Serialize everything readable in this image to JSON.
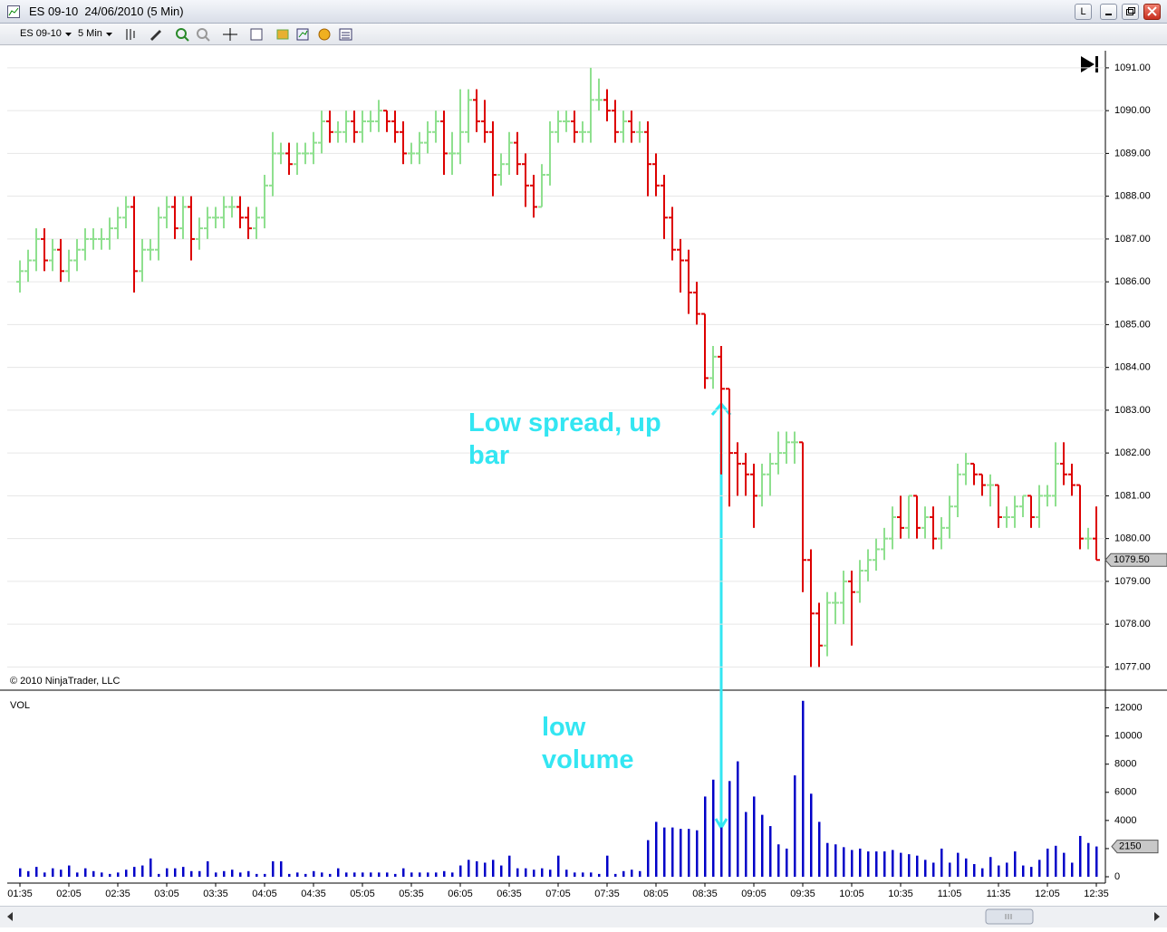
{
  "window": {
    "title": "ES 09-10  24/06/2010 (5 Min)",
    "layout_button": "L"
  },
  "toolbar": {
    "instrument": "ES 09-10",
    "interval": "5 Min"
  },
  "chart_data": [
    {
      "type": "ohlc",
      "open": [
        1086.0,
        1086.25,
        1086.5,
        1087.0,
        1086.5,
        1086.75,
        1086.25,
        1086.5,
        1086.75,
        1087.0,
        1087.0,
        1087.0,
        1087.25,
        1087.5,
        1087.75,
        1086.25,
        1086.75,
        1086.75,
        1087.5,
        1087.75,
        1087.25,
        1087.75,
        1087.0,
        1087.25,
        1087.5,
        1087.5,
        1087.75,
        1087.75,
        1087.5,
        1087.25,
        1087.5,
        1088.25,
        1089.0,
        1089.0,
        1088.75,
        1089.0,
        1089.0,
        1089.25,
        1089.75,
        1089.5,
        1089.5,
        1089.75,
        1089.5,
        1089.75,
        1089.75,
        1090.0,
        1089.75,
        1089.5,
        1089.0,
        1089.0,
        1089.25,
        1089.5,
        1089.75,
        1089.0,
        1089.0,
        1089.5,
        1090.25,
        1089.75,
        1089.5,
        1088.5,
        1088.75,
        1089.25,
        1088.75,
        1088.25,
        1087.75,
        1088.5,
        1089.5,
        1089.75,
        1089.75,
        1089.5,
        1089.5,
        1090.25,
        1090.25,
        1090.0,
        1089.5,
        1089.75,
        1089.5,
        1089.5,
        1088.75,
        1088.25,
        1087.5,
        1086.75,
        1086.5,
        1085.75,
        1085.25,
        1083.75,
        1084.25,
        1083.5,
        1082.0,
        1081.75,
        1081.5,
        1081.0,
        1081.5,
        1081.75,
        1082.0,
        1082.25,
        1082.25,
        1079.5,
        1078.25,
        1077.5,
        1078.5,
        1078.5,
        1079.0,
        1078.75,
        1079.25,
        1079.5,
        1079.75,
        1080.0,
        1080.5,
        1080.25,
        1081.0,
        1080.25,
        1080.5,
        1080.0,
        1080.25,
        1080.75,
        1081.5,
        1081.75,
        1081.5,
        1081.25,
        1081.25,
        1080.5,
        1080.5,
        1080.75,
        1081.0,
        1080.5,
        1081.0,
        1081.0,
        1081.75,
        1081.5,
        1081.25,
        1080.0,
        1080.0
      ],
      "high": [
        1086.5,
        1086.75,
        1087.25,
        1087.25,
        1087.0,
        1087.0,
        1086.75,
        1087.0,
        1087.25,
        1087.25,
        1087.25,
        1087.5,
        1087.75,
        1088.0,
        1088.0,
        1087.0,
        1087.0,
        1087.75,
        1088.0,
        1088.0,
        1088.0,
        1088.0,
        1087.5,
        1087.75,
        1087.75,
        1088.0,
        1088.0,
        1088.0,
        1087.75,
        1087.75,
        1088.5,
        1089.5,
        1089.25,
        1089.25,
        1089.25,
        1089.25,
        1089.5,
        1090.0,
        1090.0,
        1089.75,
        1090.0,
        1090.0,
        1090.0,
        1090.0,
        1090.25,
        1090.0,
        1090.0,
        1089.75,
        1089.25,
        1089.5,
        1089.75,
        1090.0,
        1090.0,
        1089.5,
        1090.5,
        1090.5,
        1090.5,
        1090.25,
        1089.75,
        1089.0,
        1089.5,
        1089.5,
        1089.0,
        1088.5,
        1088.75,
        1089.75,
        1090.0,
        1090.0,
        1090.0,
        1089.75,
        1091.0,
        1090.75,
        1090.5,
        1090.25,
        1090.0,
        1090.0,
        1089.75,
        1089.75,
        1089.0,
        1088.5,
        1087.75,
        1087.0,
        1086.75,
        1086.0,
        1085.25,
        1084.5,
        1084.5,
        1083.5,
        1082.25,
        1082.0,
        1081.75,
        1081.75,
        1082.0,
        1082.5,
        1082.5,
        1082.5,
        1082.25,
        1079.75,
        1078.5,
        1078.75,
        1078.75,
        1079.25,
        1079.25,
        1079.5,
        1079.75,
        1080.0,
        1080.25,
        1080.75,
        1081.0,
        1081.0,
        1081.0,
        1080.75,
        1080.75,
        1080.5,
        1081.0,
        1081.75,
        1082.0,
        1081.75,
        1081.5,
        1081.5,
        1081.25,
        1080.75,
        1081.0,
        1081.0,
        1081.0,
        1081.25,
        1081.25,
        1082.25,
        1082.25,
        1081.75,
        1081.25,
        1080.25,
        1080.75
      ],
      "low": [
        1085.75,
        1086.0,
        1086.25,
        1086.25,
        1086.25,
        1086.0,
        1086.0,
        1086.25,
        1086.5,
        1086.75,
        1086.75,
        1086.75,
        1087.0,
        1087.25,
        1085.75,
        1086.0,
        1086.5,
        1086.5,
        1087.25,
        1087.0,
        1087.0,
        1086.5,
        1086.75,
        1087.0,
        1087.25,
        1087.25,
        1087.5,
        1087.25,
        1087.0,
        1087.0,
        1087.25,
        1088.0,
        1088.75,
        1088.5,
        1088.5,
        1088.75,
        1088.75,
        1089.0,
        1089.25,
        1089.25,
        1089.25,
        1089.25,
        1089.25,
        1089.5,
        1089.5,
        1089.5,
        1089.25,
        1088.75,
        1088.75,
        1088.75,
        1089.0,
        1089.25,
        1088.5,
        1088.5,
        1088.75,
        1089.25,
        1089.5,
        1089.25,
        1088.0,
        1088.25,
        1088.5,
        1088.5,
        1087.75,
        1087.5,
        1087.75,
        1088.25,
        1089.25,
        1089.5,
        1089.25,
        1089.25,
        1089.25,
        1090.0,
        1089.75,
        1089.25,
        1089.25,
        1089.25,
        1089.25,
        1088.0,
        1088.0,
        1087.0,
        1086.5,
        1085.75,
        1085.25,
        1085.0,
        1083.5,
        1083.5,
        1081.5,
        1080.75,
        1081.0,
        1081.0,
        1080.25,
        1080.75,
        1081.0,
        1081.5,
        1081.75,
        1081.75,
        1078.75,
        1077.0,
        1077.0,
        1077.25,
        1078.0,
        1078.0,
        1077.5,
        1078.5,
        1079.0,
        1079.25,
        1079.5,
        1079.75,
        1080.0,
        1080.0,
        1080.0,
        1080.0,
        1079.75,
        1079.75,
        1080.0,
        1080.5,
        1081.25,
        1081.25,
        1081.0,
        1080.75,
        1080.25,
        1080.25,
        1080.25,
        1080.5,
        1080.25,
        1080.25,
        1080.75,
        1080.75,
        1081.25,
        1081.0,
        1079.75,
        1079.75,
        1079.5
      ],
      "close": [
        1086.25,
        1086.5,
        1087.0,
        1086.5,
        1086.75,
        1086.25,
        1086.5,
        1086.75,
        1087.0,
        1087.0,
        1087.0,
        1087.25,
        1087.5,
        1087.75,
        1086.25,
        1086.75,
        1086.75,
        1087.5,
        1087.75,
        1087.25,
        1087.75,
        1087.0,
        1087.25,
        1087.5,
        1087.5,
        1087.75,
        1087.75,
        1087.5,
        1087.25,
        1087.5,
        1088.25,
        1089.0,
        1089.0,
        1088.75,
        1089.0,
        1089.0,
        1089.25,
        1089.75,
        1089.5,
        1089.5,
        1089.75,
        1089.5,
        1089.75,
        1089.75,
        1090.0,
        1089.75,
        1089.5,
        1089.0,
        1089.0,
        1089.25,
        1089.5,
        1089.75,
        1089.0,
        1089.0,
        1089.5,
        1090.25,
        1089.75,
        1089.5,
        1088.5,
        1088.75,
        1089.25,
        1088.75,
        1088.25,
        1087.75,
        1088.5,
        1089.5,
        1089.75,
        1089.75,
        1089.5,
        1089.5,
        1090.25,
        1090.25,
        1090.0,
        1089.5,
        1089.75,
        1089.5,
        1089.5,
        1088.75,
        1088.25,
        1087.5,
        1086.75,
        1086.5,
        1085.75,
        1085.25,
        1083.75,
        1084.25,
        1083.5,
        1082.0,
        1081.75,
        1081.5,
        1081.0,
        1081.5,
        1081.75,
        1082.0,
        1082.25,
        1082.25,
        1079.5,
        1078.25,
        1077.5,
        1078.5,
        1078.5,
        1079.0,
        1078.75,
        1079.25,
        1079.5,
        1079.75,
        1080.0,
        1080.5,
        1080.25,
        1081.0,
        1080.25,
        1080.5,
        1080.0,
        1080.25,
        1080.75,
        1081.5,
        1081.75,
        1081.5,
        1081.25,
        1081.25,
        1080.5,
        1080.5,
        1080.75,
        1081.0,
        1080.5,
        1081.0,
        1081.0,
        1081.75,
        1081.5,
        1081.25,
        1080.0,
        1080.0,
        1079.5
      ],
      "up_color": "#8fe08f",
      "down_color": "#dd0000",
      "ylim": [
        1076.5,
        1091.4
      ],
      "yticks": [
        {
          "value": 1077,
          "label": "1077.00"
        },
        {
          "value": 1078,
          "label": "1078.00"
        },
        {
          "value": 1079,
          "label": "1079.00"
        },
        {
          "value": 1080,
          "label": "1080.00"
        },
        {
          "value": 1081,
          "label": "1081.00"
        },
        {
          "value": 1082,
          "label": "1082.00"
        },
        {
          "value": 1083,
          "label": "1083.00"
        },
        {
          "value": 1084,
          "label": "1084.00"
        },
        {
          "value": 1085,
          "label": "1085.00"
        },
        {
          "value": 1086,
          "label": "1086.00"
        },
        {
          "value": 1087,
          "label": "1087.00"
        },
        {
          "value": 1088,
          "label": "1088.00"
        },
        {
          "value": 1089,
          "label": "1089.00"
        },
        {
          "value": 1090,
          "label": "1090.00"
        },
        {
          "value": 1091,
          "label": "1091.00"
        }
      ],
      "grid": true,
      "last_value": {
        "value": 1079.5,
        "label": "1079.50"
      },
      "copyright": "© 2010 NinjaTrader, LLC",
      "annotations": [
        "Low spread, up bar"
      ]
    },
    {
      "type": "bar",
      "title": "VOL",
      "categories": [
        "01:35",
        null,
        null,
        null,
        null,
        null,
        "02:05",
        null,
        null,
        null,
        null,
        null,
        "02:35",
        null,
        null,
        null,
        null,
        null,
        "03:05",
        null,
        null,
        null,
        null,
        null,
        "03:35",
        null,
        null,
        null,
        null,
        null,
        "04:05",
        null,
        null,
        null,
        null,
        null,
        "04:35",
        null,
        null,
        null,
        null,
        null,
        "05:05",
        null,
        null,
        null,
        null,
        null,
        "05:35",
        null,
        null,
        null,
        null,
        null,
        "06:05",
        null,
        null,
        null,
        null,
        null,
        "06:35",
        null,
        null,
        null,
        null,
        null,
        "07:05",
        null,
        null,
        null,
        null,
        null,
        "07:35",
        null,
        null,
        null,
        null,
        null,
        "08:05",
        null,
        null,
        null,
        null,
        null,
        "08:35",
        null,
        null,
        null,
        null,
        null,
        "09:05",
        null,
        null,
        null,
        null,
        null,
        "09:35",
        null,
        null,
        null,
        null,
        null,
        "10:05",
        null,
        null,
        null,
        null,
        null,
        "10:35",
        null,
        null,
        null,
        null,
        null,
        "11:05",
        null,
        null,
        null,
        null,
        null,
        "11:35",
        null,
        null,
        null,
        null,
        null,
        "12:05",
        null,
        null,
        null,
        null,
        null,
        "12:35"
      ],
      "values": [
        600,
        400,
        700,
        300,
        600,
        500,
        800,
        300,
        600,
        400,
        300,
        200,
        300,
        500,
        700,
        800,
        1300,
        200,
        600,
        600,
        700,
        400,
        400,
        1100,
        300,
        400,
        500,
        300,
        400,
        200,
        200,
        1100,
        1100,
        200,
        300,
        200,
        400,
        300,
        200,
        600,
        300,
        300,
        300,
        300,
        300,
        300,
        200,
        600,
        300,
        300,
        300,
        300,
        400,
        300,
        800,
        1200,
        1100,
        1000,
        1200,
        800,
        1500,
        600,
        600,
        500,
        600,
        500,
        1500,
        500,
        300,
        300,
        300,
        200,
        1500,
        200,
        400,
        500,
        400,
        2600,
        3900,
        3500,
        3500,
        3400,
        3400,
        3300,
        5700,
        6900,
        3500,
        6800,
        8200,
        4600,
        5700,
        4400,
        3600,
        2300,
        2000,
        7200,
        12500,
        5900,
        3900,
        2400,
        2300,
        2100,
        1900,
        2000,
        1800,
        1800,
        1800,
        1900,
        1700,
        1600,
        1500,
        1200,
        1000,
        2000,
        1000,
        1700,
        1300,
        900,
        600,
        1400,
        800,
        1000,
        1800,
        800,
        700,
        1200,
        2000,
        2200,
        1700,
        1000,
        2900,
        2400,
        2150
      ],
      "color": "#0000c8",
      "ylim": [
        0,
        13000
      ],
      "yticks": [
        0,
        2000,
        4000,
        6000,
        8000,
        10000,
        12000
      ],
      "annotations": [
        "low volume"
      ]
    }
  ]
}
